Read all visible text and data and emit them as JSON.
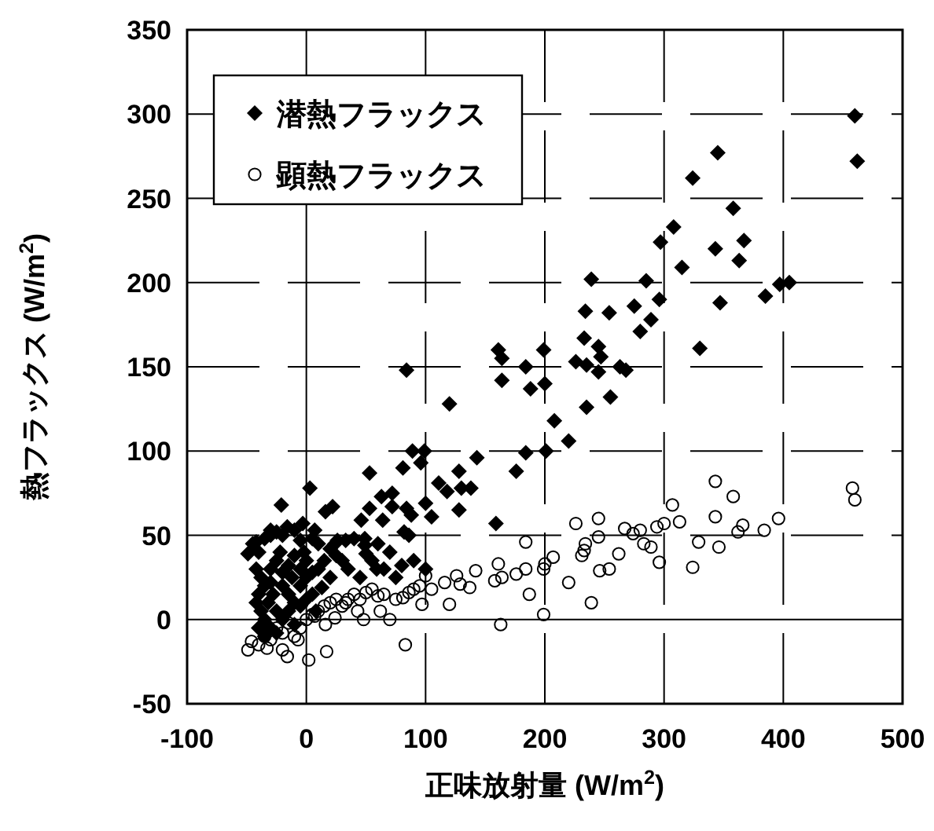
{
  "chart_data": {
    "type": "scatter",
    "xlabel": "正味放射量 (W/m$^{2}$)",
    "ylabel": "熱フラックス (W/m$^{2}$)",
    "xlim": [
      -100,
      500
    ],
    "xticks": [
      -100,
      0,
      100,
      200,
      300,
      400,
      500
    ],
    "ylim": [
      -50,
      350
    ],
    "yticks": [
      -50,
      0,
      50,
      100,
      150,
      200,
      250,
      300,
      350
    ],
    "grid": true,
    "legend": "top left",
    "series": [
      {
        "name": "潜熱フラックス",
        "color": "#000000",
        "marker": "diamond",
        "x": [
          345,
          324,
          358,
          308,
          297,
          343,
          367,
          363,
          315,
          239,
          285,
          397,
          296,
          347,
          385,
          234,
          254,
          275,
          289,
          280,
          330,
          233,
          245,
          247,
          226,
          235,
          245,
          263,
          268,
          255,
          235,
          161,
          164,
          199,
          184,
          164,
          188,
          200,
          84,
          120,
          208,
          220,
          201,
          184,
          176,
          143,
          128,
          99,
          89,
          96,
          81,
          53,
          111,
          118,
          138,
          130,
          100,
          128,
          72,
          63,
          53,
          72,
          84,
          88,
          105,
          64,
          82,
          86,
          46,
          49,
          49,
          50,
          33,
          24,
          159,
          3,
          -21,
          22,
          16,
          -30,
          -16,
          -3,
          7,
          -42,
          -49,
          460,
          462,
          405,
          59,
          13,
          26,
          -45,
          -40,
          -35,
          -30,
          -25,
          -20,
          -10,
          -5,
          5,
          10,
          20,
          25,
          30,
          -42,
          -38,
          -35,
          -30,
          -25,
          -20,
          -15,
          -10,
          -5,
          0,
          5,
          10,
          15,
          20,
          -42,
          -40,
          -38,
          -35,
          -32,
          -28,
          -25,
          -20,
          -15,
          -10,
          -5,
          0,
          5,
          8,
          -40,
          -35,
          -30,
          -25,
          -20,
          -15,
          -10,
          -5,
          0,
          -30,
          -22,
          -12,
          -2,
          40,
          35,
          45,
          55,
          60,
          70,
          65,
          80,
          75,
          90,
          100
        ],
        "values": [
          277,
          262,
          244,
          233,
          224,
          220,
          225,
          213,
          209,
          202,
          201,
          199,
          190,
          188,
          192,
          183,
          182,
          186,
          178,
          171,
          161,
          167,
          162,
          156,
          153,
          151,
          147,
          150,
          148,
          132,
          126,
          160,
          155,
          160,
          150,
          142,
          137,
          140,
          148,
          128,
          118,
          106,
          100,
          99,
          88,
          96,
          88,
          100,
          100,
          93,
          90,
          87,
          81,
          76,
          78,
          78,
          69,
          65,
          75,
          73,
          66,
          67,
          66,
          62,
          61,
          59,
          52,
          50,
          59,
          48,
          44,
          39,
          47,
          45,
          57,
          78,
          68,
          67,
          64,
          53,
          55,
          57,
          53,
          46,
          39,
          299,
          272,
          200,
          30,
          19,
          47,
          45,
          40,
          48,
          50,
          52,
          50,
          53,
          47,
          48,
          45,
          42,
          38,
          35,
          30,
          25,
          20,
          30,
          35,
          28,
          32,
          38,
          30,
          35,
          28,
          30,
          35,
          25,
          10,
          15,
          5,
          0,
          10,
          15,
          5,
          20,
          15,
          10,
          20,
          25,
          15,
          5,
          -5,
          -10,
          -5,
          -8,
          0,
          5,
          -3,
          8,
          12,
          22,
          40,
          25,
          40,
          48,
          30,
          25,
          35,
          45,
          40,
          30,
          32,
          25,
          35,
          30
        ]
      },
      {
        "name": "顕熱フラックス",
        "color": "#000000",
        "marker": "circle",
        "x": [
          343,
          358,
          307,
          396,
          245,
          226,
          300,
          313,
          294,
          343,
          267,
          280,
          274,
          366,
          362,
          384,
          245,
          234,
          233,
          231,
          283,
          289,
          262,
          184,
          329,
          346,
          296,
          324,
          246,
          254,
          200,
          207,
          199,
          161,
          158,
          164,
          176,
          184,
          142,
          220,
          187,
          239,
          199,
          163,
          126,
          116,
          129,
          137,
          100,
          105,
          120,
          97,
          83,
          70,
          62,
          81,
          86,
          50,
          43,
          48,
          33,
          24,
          16,
          7,
          17,
          2,
          -16,
          -7,
          -49,
          -33,
          -20,
          -46,
          -40,
          -35,
          -30,
          -25,
          -20,
          -15,
          -10,
          -5,
          0,
          5,
          10,
          15,
          20,
          25,
          30,
          35,
          40,
          45,
          55,
          60,
          65,
          75,
          90,
          95,
          458,
          460
        ],
        "values": [
          82,
          73,
          68,
          60,
          60,
          57,
          57,
          58,
          55,
          61,
          54,
          53,
          51,
          56,
          52,
          53,
          49,
          45,
          41,
          38,
          45,
          43,
          39,
          46,
          46,
          43,
          34,
          31,
          29,
          30,
          33,
          37,
          30,
          33,
          23,
          25,
          27,
          30,
          29,
          22,
          15,
          10,
          3,
          -3,
          26,
          22,
          21,
          19,
          26,
          18,
          9,
          9,
          -15,
          0,
          5,
          13,
          16,
          16,
          5,
          0,
          10,
          1,
          -3,
          2,
          -19,
          -24,
          -22,
          -12,
          -18,
          -17,
          -18,
          -13,
          -15,
          -10,
          -12,
          -5,
          -8,
          -2,
          -10,
          -5,
          0,
          3,
          5,
          8,
          10,
          12,
          8,
          12,
          15,
          12,
          18,
          14,
          15,
          12,
          18,
          20,
          78,
          71
        ]
      }
    ]
  }
}
